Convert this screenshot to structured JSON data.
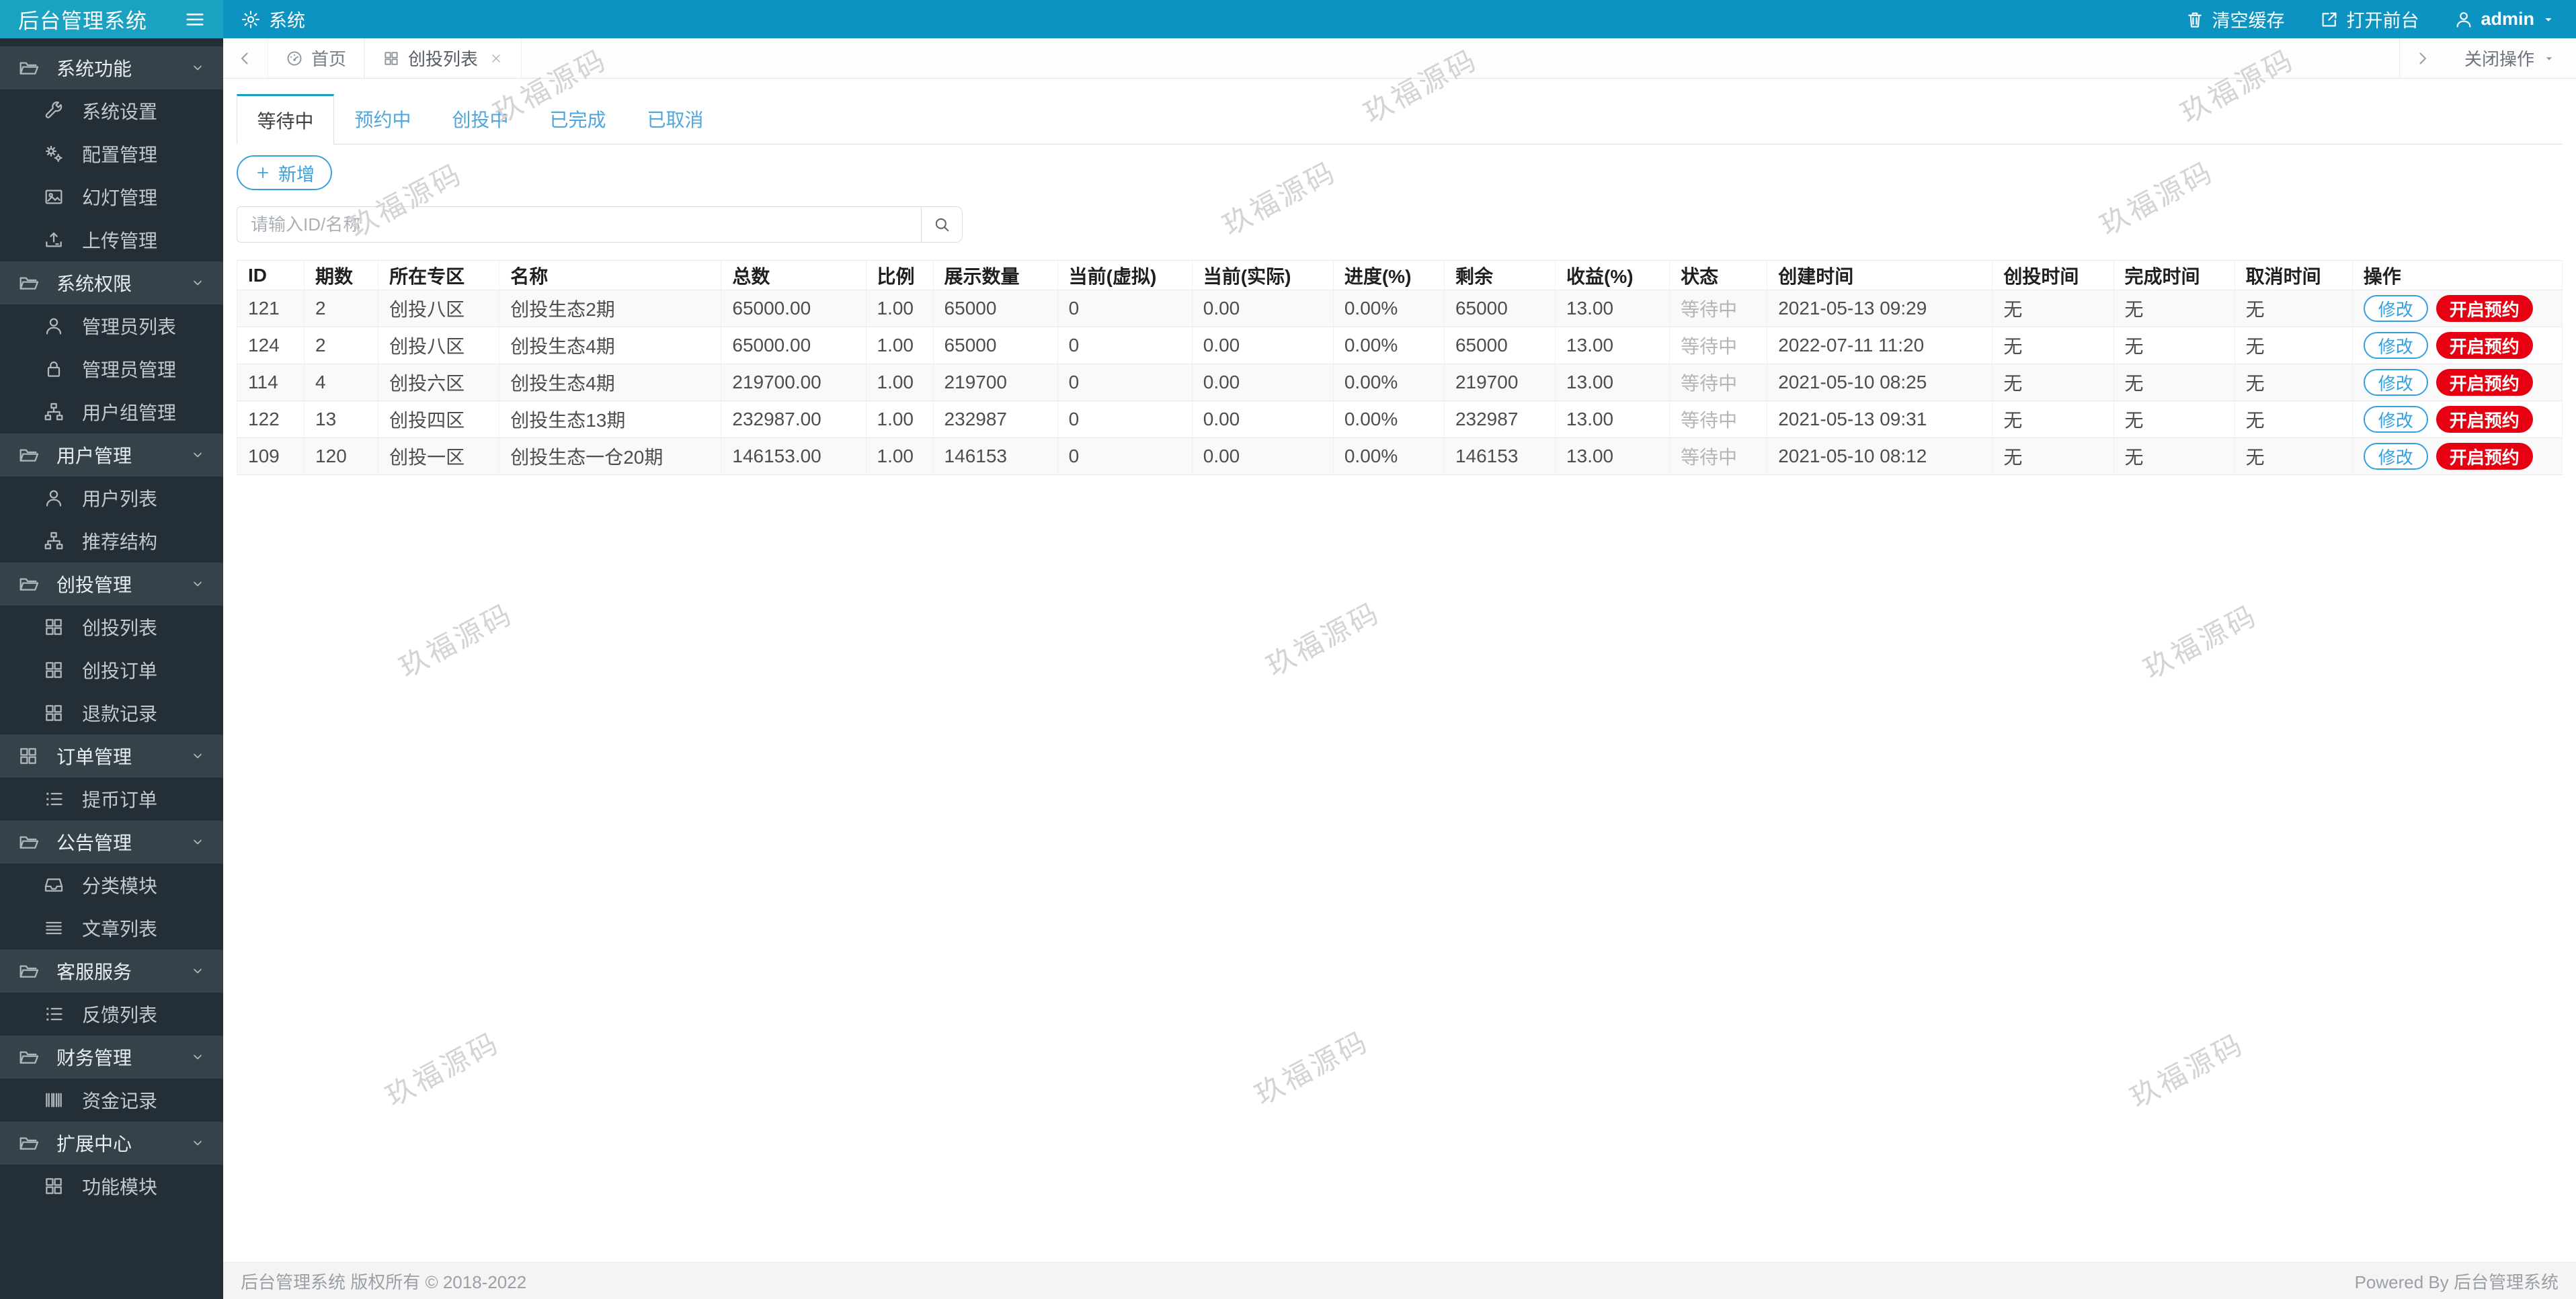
{
  "app": {
    "title": "后台管理系统"
  },
  "topbar": {
    "menu_label": "系统",
    "clear_cache": "清空缓存",
    "open_frontend": "打开前台",
    "username": "admin"
  },
  "tabstrip": {
    "tabs": [
      {
        "label": "首页",
        "icon": "dashboard",
        "active": false,
        "closable": false
      },
      {
        "label": "创投列表",
        "icon": "grid",
        "active": true,
        "closable": true
      }
    ],
    "close_ops": "关闭操作"
  },
  "sidebar": {
    "items": [
      {
        "type": "group",
        "icon": "folder",
        "label": "系统功能"
      },
      {
        "type": "child",
        "icon": "wrench",
        "label": "系统设置"
      },
      {
        "type": "child",
        "icon": "gears",
        "label": "配置管理"
      },
      {
        "type": "child",
        "icon": "image",
        "label": "幻灯管理"
      },
      {
        "type": "child",
        "icon": "upload",
        "label": "上传管理"
      },
      {
        "type": "group",
        "icon": "folder",
        "label": "系统权限"
      },
      {
        "type": "child",
        "icon": "user",
        "label": "管理员列表"
      },
      {
        "type": "child",
        "icon": "lock",
        "label": "管理员管理"
      },
      {
        "type": "child",
        "icon": "sitemap",
        "label": "用户组管理"
      },
      {
        "type": "group",
        "icon": "folder",
        "label": "用户管理"
      },
      {
        "type": "child",
        "icon": "user",
        "label": "用户列表"
      },
      {
        "type": "child",
        "icon": "sitemap",
        "label": "推荐结构"
      },
      {
        "type": "group",
        "icon": "folder",
        "label": "创投管理"
      },
      {
        "type": "child",
        "icon": "grid",
        "label": "创投列表"
      },
      {
        "type": "child",
        "icon": "grid",
        "label": "创投订单"
      },
      {
        "type": "child",
        "icon": "grid",
        "label": "退款记录"
      },
      {
        "type": "group",
        "icon": "grid",
        "label": "订单管理"
      },
      {
        "type": "child",
        "icon": "list",
        "label": "提币订单"
      },
      {
        "type": "group",
        "icon": "folder",
        "label": "公告管理"
      },
      {
        "type": "child",
        "icon": "inbox",
        "label": "分类模块"
      },
      {
        "type": "child",
        "icon": "justify",
        "label": "文章列表"
      },
      {
        "type": "group",
        "icon": "folder",
        "label": "客服服务"
      },
      {
        "type": "child",
        "icon": "list",
        "label": "反馈列表"
      },
      {
        "type": "group",
        "icon": "folder",
        "label": "财务管理"
      },
      {
        "type": "child",
        "icon": "barcode",
        "label": "资金记录"
      },
      {
        "type": "group",
        "icon": "folder",
        "label": "扩展中心"
      },
      {
        "type": "child",
        "icon": "grid",
        "label": "功能模块"
      }
    ]
  },
  "page": {
    "status_tabs": [
      {
        "label": "等待中",
        "active": true
      },
      {
        "label": "预约中",
        "active": false
      },
      {
        "label": "创投中",
        "active": false
      },
      {
        "label": "已完成",
        "active": false
      },
      {
        "label": "已取消",
        "active": false
      }
    ],
    "add_button": "新增",
    "search_placeholder": "请输入ID/名称",
    "table": {
      "columns": [
        "ID",
        "期数",
        "所在专区",
        "名称",
        "总数",
        "比例",
        "展示数量",
        "当前(虚拟)",
        "当前(实际)",
        "进度(%)",
        "剩余",
        "收益(%)",
        "状态",
        "创建时间",
        "创投时间",
        "完成时间",
        "取消时间",
        "操作"
      ],
      "action_labels": {
        "edit": "修改",
        "open_reserve": "开启预约"
      },
      "rows": [
        {
          "cells": [
            "121",
            "2",
            "创投八区",
            "创投生态2期",
            "65000.00",
            "1.00",
            "65000",
            "0",
            "0.00",
            "0.00%",
            "65000",
            "13.00",
            "等待中",
            "2021-05-13 09:29",
            "无",
            "无",
            "无"
          ]
        },
        {
          "cells": [
            "124",
            "2",
            "创投八区",
            "创投生态4期",
            "65000.00",
            "1.00",
            "65000",
            "0",
            "0.00",
            "0.00%",
            "65000",
            "13.00",
            "等待中",
            "2022-07-11 11:20",
            "无",
            "无",
            "无"
          ]
        },
        {
          "cells": [
            "114",
            "4",
            "创投六区",
            "创投生态4期",
            "219700.00",
            "1.00",
            "219700",
            "0",
            "0.00",
            "0.00%",
            "219700",
            "13.00",
            "等待中",
            "2021-05-10 08:25",
            "无",
            "无",
            "无"
          ]
        },
        {
          "cells": [
            "122",
            "13",
            "创投四区",
            "创投生态13期",
            "232987.00",
            "1.00",
            "232987",
            "0",
            "0.00",
            "0.00%",
            "232987",
            "13.00",
            "等待中",
            "2021-05-13 09:31",
            "无",
            "无",
            "无"
          ]
        },
        {
          "cells": [
            "109",
            "120",
            "创投一区",
            "创投生态一仓20期",
            "146153.00",
            "1.00",
            "146153",
            "0",
            "0.00",
            "0.00%",
            "146153",
            "13.00",
            "等待中",
            "2021-05-10 08:12",
            "无",
            "无",
            "无"
          ]
        }
      ]
    }
  },
  "footer": {
    "left": "后台管理系统 版权所有 © 2018-2022",
    "right": "Powered By 后台管理系统"
  },
  "watermark": {
    "text": "玖福源码"
  },
  "colors": {
    "topbar": "#0d93c2",
    "logo": "#1ba2c2",
    "sidebar": "#242e36",
    "sidebar_group": "#36424a",
    "accent_blue": "#35a0df",
    "active_tab_border": "#18a0c5",
    "danger_red": "#e60012"
  }
}
